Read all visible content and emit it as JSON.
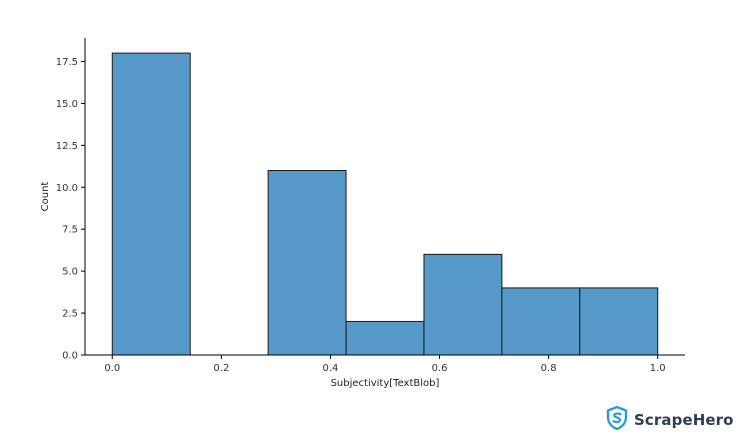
{
  "chart_data": {
    "type": "histogram",
    "xlabel": "Subjectivity[TextBlob]",
    "ylabel": "Count",
    "xlim": [
      -0.05,
      1.05
    ],
    "ylim": [
      0,
      18.9
    ],
    "xticks": [
      0.0,
      0.2,
      0.4,
      0.6,
      0.8,
      1.0
    ],
    "xtick_labels": [
      "0.0",
      "0.2",
      "0.4",
      "0.6",
      "0.8",
      "1.0"
    ],
    "yticks": [
      0.0,
      2.5,
      5.0,
      7.5,
      10.0,
      12.5,
      15.0,
      17.5
    ],
    "ytick_labels": [
      "0.0",
      "2.5",
      "5.0",
      "7.5",
      "10.0",
      "12.5",
      "15.0",
      "17.5"
    ],
    "bins": [
      {
        "start": 0.0,
        "end": 0.1429,
        "count": 18
      },
      {
        "start": 0.1429,
        "end": 0.2857,
        "count": 0
      },
      {
        "start": 0.2857,
        "end": 0.4286,
        "count": 11
      },
      {
        "start": 0.4286,
        "end": 0.5714,
        "count": 2
      },
      {
        "start": 0.5714,
        "end": 0.7143,
        "count": 6
      },
      {
        "start": 0.7143,
        "end": 0.8571,
        "count": 4
      },
      {
        "start": 0.8571,
        "end": 1.0,
        "count": 4
      }
    ],
    "bar_color": "#5799c8",
    "edge_color": "#1a1a1a",
    "grid": false,
    "legend": "none"
  },
  "brand": {
    "name": "ScrapeHero",
    "icon": "shield-s-logo-icon",
    "color": "#2b3f57",
    "icon_color": "#2a9bd6"
  }
}
